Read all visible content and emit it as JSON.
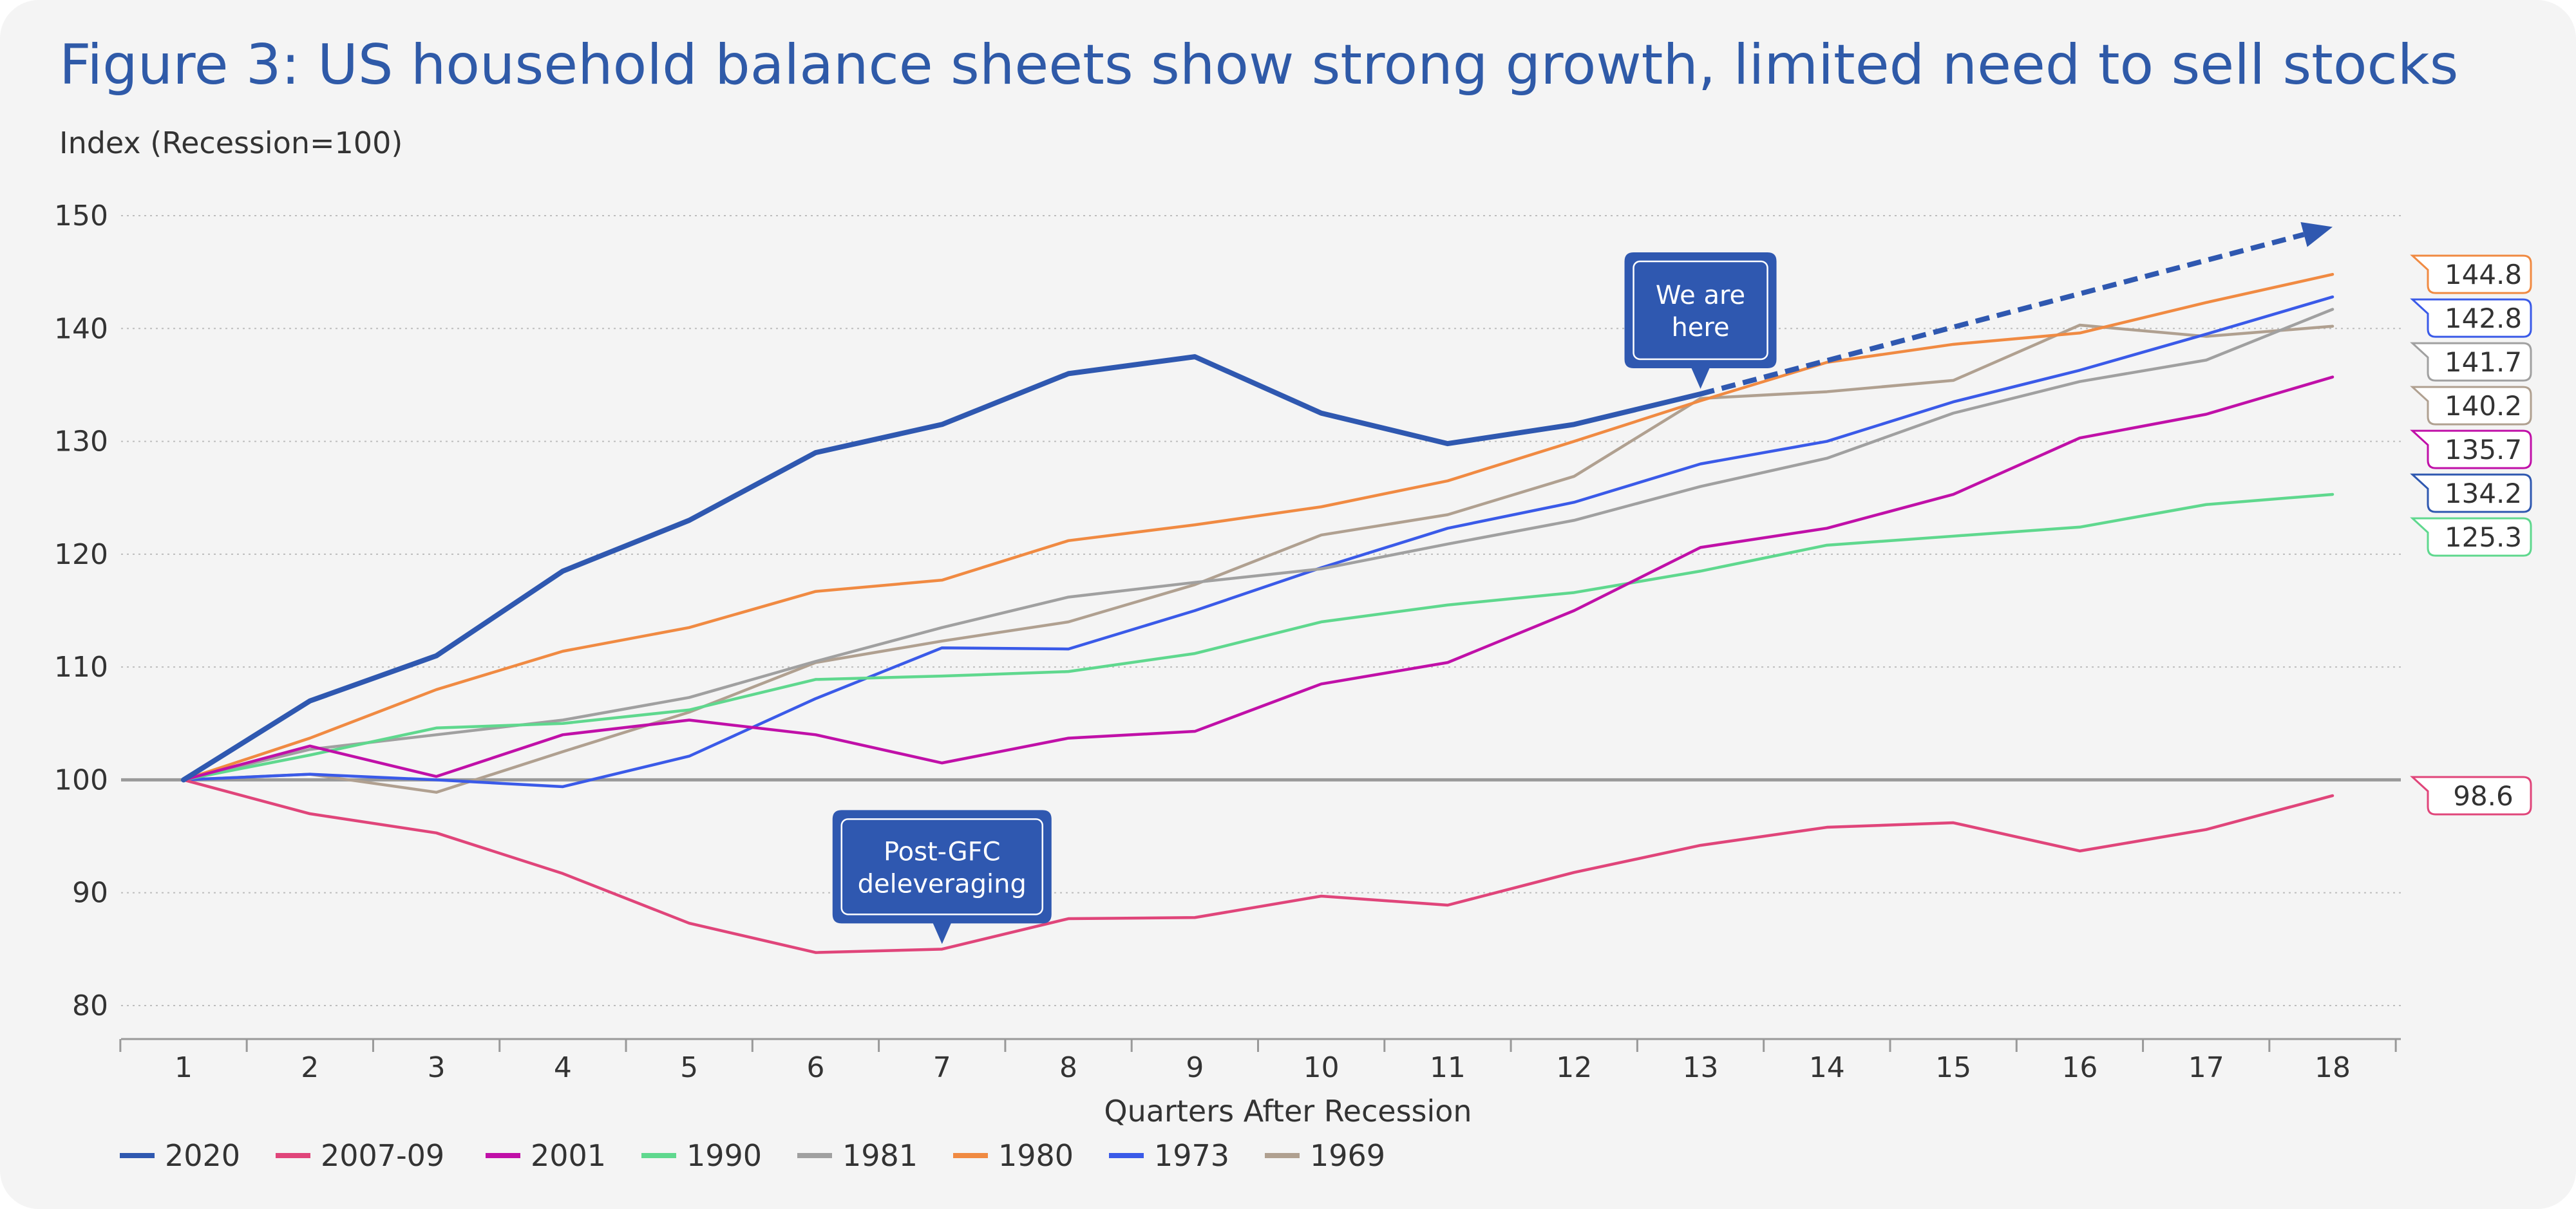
{
  "chart_data": {
    "type": "line",
    "title": "Figure 3: US household balance sheets show strong growth, limited need to sell stocks",
    "subtitle": "Index (Recession=100)",
    "xlabel": "Quarters After Recession",
    "ylabel": "",
    "x": [
      1,
      2,
      3,
      4,
      5,
      6,
      7,
      8,
      9,
      10,
      11,
      12,
      13,
      14,
      15,
      16,
      17,
      18
    ],
    "ylim": [
      80,
      150
    ],
    "yticks": [
      80,
      90,
      100,
      110,
      120,
      130,
      140,
      150
    ],
    "grid": true,
    "legend_position": "bottom-left",
    "reference_line": 100,
    "series": [
      {
        "name": "2020",
        "color": "#2f58b0",
        "values": [
          100,
          107,
          111,
          118.5,
          123,
          129,
          131.5,
          136,
          137.5,
          132.5,
          129.8,
          131.5,
          134.2,
          null,
          null,
          null,
          null,
          null
        ],
        "projection": {
          "x": [
            13,
            18
          ],
          "values": [
            134.2,
            149
          ]
        },
        "end_label": ""
      },
      {
        "name": "2007-09",
        "color": "#e0457a",
        "values": [
          100,
          97,
          95.3,
          91.7,
          87.3,
          84.7,
          85,
          87.7,
          87.8,
          89.7,
          88.9,
          91.8,
          94.2,
          95.8,
          96.2,
          93.7,
          95.6,
          98.6
        ],
        "end_label": "98.6"
      },
      {
        "name": "2001",
        "color": "#c010a8",
        "values": [
          100,
          103,
          100.3,
          104,
          105.3,
          104,
          101.5,
          103.7,
          104.3,
          108.5,
          110.4,
          115,
          120.6,
          122.3,
          125.3,
          130.3,
          132.4,
          135.7
        ],
        "end_label": "135.7"
      },
      {
        "name": "1990",
        "color": "#5fd88e",
        "values": [
          100,
          102.2,
          104.6,
          105,
          106.2,
          108.9,
          109.2,
          109.6,
          111.2,
          114,
          115.5,
          116.6,
          118.5,
          120.8,
          121.6,
          122.4,
          124.4,
          125.3
        ],
        "end_label": "125.3"
      },
      {
        "name": "1981",
        "color": "#a0a0a0",
        "values": [
          100,
          102.7,
          104,
          105.3,
          107.3,
          110.5,
          113.5,
          116.2,
          117.5,
          118.7,
          120.9,
          123,
          126,
          128.5,
          132.5,
          135.3,
          137.2,
          141.7
        ],
        "end_label": "141.7"
      },
      {
        "name": "1980",
        "color": "#f08a42",
        "values": [
          100,
          103.7,
          108,
          111.4,
          113.5,
          116.7,
          117.7,
          121.2,
          122.6,
          124.2,
          126.5,
          130,
          133.6,
          137,
          138.6,
          139.6,
          142.3,
          144.8
        ],
        "end_label": "144.8"
      },
      {
        "name": "1973",
        "color": "#3a5ae8",
        "values": [
          100,
          100.5,
          100,
          99.4,
          102.1,
          107.2,
          111.7,
          111.6,
          115,
          118.8,
          122.3,
          124.6,
          128,
          130,
          133.5,
          136.3,
          139.5,
          142.8
        ],
        "end_label": "142.8"
      },
      {
        "name": "1969",
        "color": "#b0a090",
        "values": [
          100,
          100.5,
          98.9,
          102.5,
          106,
          110.4,
          112.3,
          114,
          117.3,
          121.7,
          123.5,
          126.9,
          133.8,
          134.4,
          135.4,
          140.3,
          139.3,
          140.2
        ],
        "end_label": "140.2"
      }
    ],
    "extra_end_labels": [
      {
        "value": "134.2",
        "color": "#2f58b0"
      }
    ],
    "annotations": [
      {
        "line1": "We are",
        "line2": "here",
        "x": 13,
        "y": 134.2
      },
      {
        "line1": "Post-GFC",
        "line2": "deleveraging",
        "x": 7,
        "y": 85
      }
    ]
  }
}
